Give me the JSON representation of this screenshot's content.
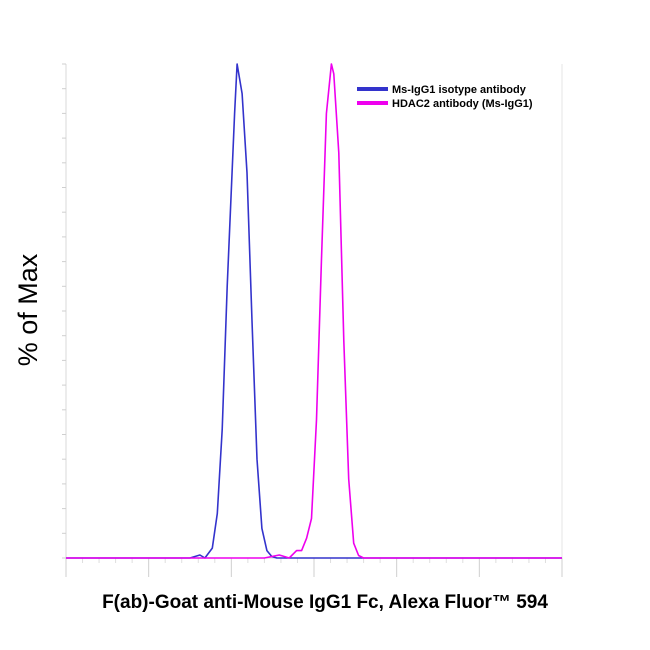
{
  "chart_data": {
    "type": "line",
    "title": "",
    "xlabel": "F(ab)-Goat anti-Mouse IgG1 Fc, Alexa Fluor™ 594",
    "ylabel": "% of Max",
    "xlim": [
      0,
      1000
    ],
    "ylim": [
      0,
      100
    ],
    "grid": false,
    "legend_position": "top-right",
    "series": [
      {
        "name": "Ms-IgG1 isotype antibody",
        "color": "#3333cc",
        "x": [
          0,
          100,
          200,
          250,
          270,
          280,
          295,
          305,
          315,
          325,
          340,
          345,
          355,
          365,
          375,
          385,
          395,
          405,
          415,
          425,
          435,
          450,
          470,
          500,
          600,
          800,
          1000
        ],
        "y": [
          0,
          0,
          0,
          0,
          0.6,
          0,
          2,
          9,
          26,
          55,
          90,
          100,
          94,
          78,
          48,
          20,
          6,
          1.5,
          0.3,
          0,
          0,
          0,
          0,
          0,
          0,
          0,
          0
        ]
      },
      {
        "name": "HDAC2 antibody (Ms-IgG1)",
        "color": "#ee00ee",
        "x": [
          0,
          100,
          200,
          300,
          400,
          430,
          450,
          465,
          475,
          485,
          495,
          505,
          515,
          525,
          535,
          540,
          550,
          560,
          570,
          580,
          590,
          600,
          620,
          650,
          800,
          1000
        ],
        "y": [
          0,
          0,
          0,
          0,
          0,
          0.6,
          0,
          1.5,
          1.5,
          4,
          8,
          28,
          60,
          90,
          100,
          98,
          82,
          44,
          16,
          3,
          0.5,
          0,
          0,
          0,
          0,
          0
        ]
      }
    ]
  }
}
